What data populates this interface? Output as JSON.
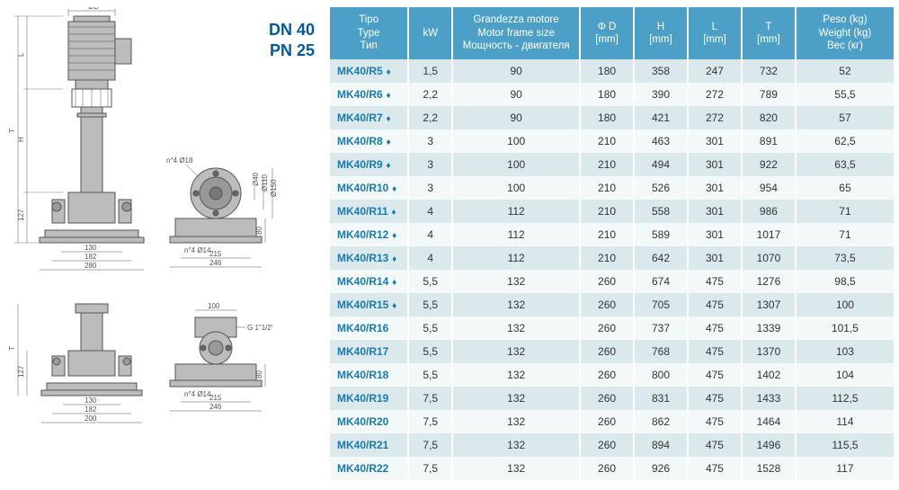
{
  "designation": {
    "line1": "DN 40",
    "line2": "PN 25"
  },
  "table": {
    "header_bg": "#4ca0c7",
    "header_fg": "#ffffff",
    "row_odd_bg": "#dbe9ed",
    "row_even_bg": "#f3f8f9",
    "type_color": "#1a7aae",
    "columns": [
      {
        "key": "type",
        "lines": [
          "Tipo",
          "Type",
          "Тип"
        ]
      },
      {
        "key": "kw",
        "lines": [
          "kW"
        ]
      },
      {
        "key": "motor",
        "lines": [
          "Grandezza motore",
          "Motor frame size",
          "Мощность - двигателя"
        ]
      },
      {
        "key": "d",
        "lines": [
          "Φ D",
          "[mm]"
        ]
      },
      {
        "key": "h",
        "lines": [
          "H",
          "[mm]"
        ]
      },
      {
        "key": "l",
        "lines": [
          "L",
          "[mm]"
        ]
      },
      {
        "key": "t",
        "lines": [
          "T",
          "[mm]"
        ]
      },
      {
        "key": "w",
        "lines": [
          "Peso (kg)",
          "Weight (kg)",
          "Вес (кг)"
        ]
      }
    ],
    "rows": [
      {
        "type": "MK40/R5",
        "diamond": true,
        "kw": "1,5",
        "motor": "90",
        "d": "180",
        "h": "358",
        "l": "247",
        "t": "732",
        "w": "52"
      },
      {
        "type": "MK40/R6",
        "diamond": true,
        "kw": "2,2",
        "motor": "90",
        "d": "180",
        "h": "390",
        "l": "272",
        "t": "789",
        "w": "55,5"
      },
      {
        "type": "MK40/R7",
        "diamond": true,
        "kw": "2,2",
        "motor": "90",
        "d": "180",
        "h": "421",
        "l": "272",
        "t": "820",
        "w": "57"
      },
      {
        "type": "MK40/R8",
        "diamond": true,
        "kw": "3",
        "motor": "100",
        "d": "210",
        "h": "463",
        "l": "301",
        "t": "891",
        "w": "62,5"
      },
      {
        "type": "MK40/R9",
        "diamond": true,
        "kw": "3",
        "motor": "100",
        "d": "210",
        "h": "494",
        "l": "301",
        "t": "922",
        "w": "63,5"
      },
      {
        "type": "MK40/R10",
        "diamond": true,
        "kw": "3",
        "motor": "100",
        "d": "210",
        "h": "526",
        "l": "301",
        "t": "954",
        "w": "65"
      },
      {
        "type": "MK40/R11",
        "diamond": true,
        "kw": "4",
        "motor": "112",
        "d": "210",
        "h": "558",
        "l": "301",
        "t": "986",
        "w": "71"
      },
      {
        "type": "MK40/R12",
        "diamond": true,
        "kw": "4",
        "motor": "112",
        "d": "210",
        "h": "589",
        "l": "301",
        "t": "1017",
        "w": "71"
      },
      {
        "type": "MK40/R13",
        "diamond": true,
        "kw": "4",
        "motor": "112",
        "d": "210",
        "h": "642",
        "l": "301",
        "t": "1070",
        "w": "73,5"
      },
      {
        "type": "MK40/R14",
        "diamond": true,
        "kw": "5,5",
        "motor": "132",
        "d": "260",
        "h": "674",
        "l": "475",
        "t": "1276",
        "w": "98,5"
      },
      {
        "type": "MK40/R15",
        "diamond": true,
        "kw": "5,5",
        "motor": "132",
        "d": "260",
        "h": "705",
        "l": "475",
        "t": "1307",
        "w": "100"
      },
      {
        "type": "MK40/R16",
        "diamond": false,
        "kw": "5,5",
        "motor": "132",
        "d": "260",
        "h": "737",
        "l": "475",
        "t": "1339",
        "w": "101,5"
      },
      {
        "type": "MK40/R17",
        "diamond": false,
        "kw": "5,5",
        "motor": "132",
        "d": "260",
        "h": "768",
        "l": "475",
        "t": "1370",
        "w": "103"
      },
      {
        "type": "MK40/R18",
        "diamond": false,
        "kw": "5,5",
        "motor": "132",
        "d": "260",
        "h": "800",
        "l": "475",
        "t": "1402",
        "w": "104"
      },
      {
        "type": "MK40/R19",
        "diamond": false,
        "kw": "7,5",
        "motor": "132",
        "d": "260",
        "h": "831",
        "l": "475",
        "t": "1433",
        "w": "112,5"
      },
      {
        "type": "MK40/R20",
        "diamond": false,
        "kw": "7,5",
        "motor": "132",
        "d": "260",
        "h": "862",
        "l": "475",
        "t": "1464",
        "w": "114"
      },
      {
        "type": "MK40/R21",
        "diamond": false,
        "kw": "7,5",
        "motor": "132",
        "d": "260",
        "h": "894",
        "l": "475",
        "t": "1496",
        "w": "115,5"
      },
      {
        "type": "MK40/R22",
        "diamond": false,
        "kw": "7,5",
        "motor": "132",
        "d": "260",
        "h": "926",
        "l": "475",
        "t": "1528",
        "w": "117"
      }
    ]
  },
  "drawing": {
    "stroke": "#555555",
    "fill": "#bcbcbc",
    "dims_front": {
      "d_top": "ØD",
      "v_L": "L",
      "v_T": "T",
      "v_H": "H",
      "v_127": "127",
      "b_130": "130",
      "b_182": "182",
      "b_280": "280"
    },
    "dims_side": {
      "n4_018": "n°4 Ø18",
      "d40": "Ø40",
      "d110": "Ø110",
      "d150": "Ø150",
      "v_80": "80",
      "n4_014": "n°4 Ø14",
      "b_215": "215",
      "b_246": "246"
    },
    "dims_bottom_left": {
      "v_T": "T",
      "v_127": "127",
      "b_130": "130",
      "b_182": "182",
      "b_200": "200"
    },
    "dims_bottom_right": {
      "t_100": "100",
      "g_thread": "G 1\"1/2'",
      "v_80": "80",
      "n4_014": "n°4 Ø14",
      "b_215": "215",
      "b_246": "246"
    }
  }
}
